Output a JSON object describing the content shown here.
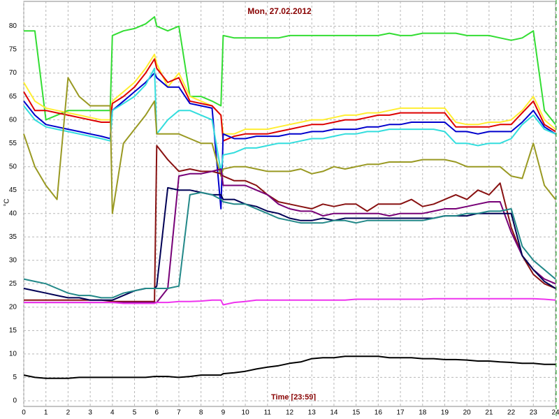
{
  "chart_data": {
    "type": "line",
    "title": "Mon, 27.02.2012",
    "xlabel": "Time [23:59]",
    "ylabel": "°C",
    "xlim": [
      0,
      24
    ],
    "ylim": [
      -1.2,
      85.3
    ],
    "grid": true,
    "xticks": [
      0,
      1,
      2,
      3,
      4,
      5,
      6,
      7,
      8,
      9,
      10,
      11,
      12,
      13,
      14,
      15,
      16,
      17,
      18,
      19,
      20,
      21,
      22,
      23,
      24
    ],
    "yticks": [
      0,
      5,
      10,
      15,
      20,
      25,
      30,
      35,
      40,
      45,
      50,
      55,
      60,
      65,
      70,
      75,
      80
    ],
    "x": [
      0,
      0.5,
      1,
      1.5,
      2,
      2.5,
      3,
      3.5,
      3.9,
      4,
      4.5,
      5,
      5.5,
      5.9,
      6,
      6.5,
      7,
      7.5,
      8,
      8.5,
      8.9,
      9,
      9.5,
      10,
      10.5,
      11,
      11.5,
      12,
      12.5,
      13,
      13.5,
      14,
      14.5,
      15,
      15.5,
      16,
      16.5,
      17,
      17.5,
      18,
      18.5,
      19,
      19.5,
      20,
      20.5,
      21,
      21.5,
      22,
      22.5,
      23,
      23.5,
      24
    ],
    "series": [
      {
        "color": "#33dd33",
        "values": [
          79,
          79,
          60,
          61,
          62,
          62,
          62,
          62,
          62,
          78,
          79,
          79.5,
          80.5,
          82,
          80,
          79,
          80,
          65,
          65,
          64,
          63,
          78,
          77.5,
          77.5,
          77.5,
          77.5,
          77.5,
          78,
          78,
          78,
          78,
          78,
          78,
          78,
          78,
          78,
          78.5,
          78,
          78,
          78.5,
          78.5,
          78.5,
          78.5,
          78,
          78,
          78,
          77.5,
          77,
          77.5,
          79,
          62,
          59
        ]
      },
      {
        "color": "#ffee33",
        "values": [
          68,
          64,
          62.5,
          62,
          61.5,
          61,
          60.5,
          60,
          60,
          64,
          66,
          68,
          71,
          74,
          72,
          67,
          70,
          65,
          64,
          63,
          61,
          57,
          57,
          58,
          58,
          58,
          58.5,
          59,
          59.5,
          60,
          60,
          60.5,
          61,
          61,
          61.5,
          61.5,
          62,
          62.5,
          62.5,
          62.5,
          62.5,
          62.5,
          59.5,
          59,
          59,
          59.5,
          59.5,
          60,
          62,
          65,
          60,
          58
        ]
      },
      {
        "color": "#dd0000",
        "values": [
          66,
          62,
          62,
          61.5,
          61,
          60.5,
          60,
          59.5,
          59.5,
          63.5,
          65,
          67,
          70,
          73,
          71,
          68,
          69,
          64,
          63.5,
          63,
          61,
          55.5,
          56.5,
          57,
          57,
          57,
          57.5,
          58,
          58.5,
          59,
          59,
          59.5,
          60,
          60,
          60.5,
          61,
          61,
          61.5,
          61.5,
          61.5,
          61.5,
          61.5,
          58.5,
          58.5,
          58.5,
          58.5,
          59,
          59,
          61.5,
          64,
          59,
          57.5
        ]
      },
      {
        "color": "#0000cc",
        "values": [
          64,
          61,
          59,
          58.5,
          58,
          57.5,
          57,
          56.5,
          56,
          62,
          64,
          66,
          68,
          70,
          69,
          67,
          67,
          63.5,
          63,
          62.5,
          41,
          57,
          56,
          56,
          56.5,
          56.5,
          56.5,
          57,
          57,
          57.5,
          57.5,
          58,
          58,
          58,
          58.5,
          58.5,
          59,
          59,
          59.5,
          59.5,
          59.5,
          59.5,
          57.5,
          57.5,
          57,
          57.5,
          57.5,
          57.5,
          59.5,
          62,
          58.5,
          57
        ]
      },
      {
        "color": "#33dddd",
        "values": [
          63,
          60,
          58.5,
          58,
          57.5,
          57,
          56.5,
          56,
          55.5,
          62,
          63.5,
          65,
          67.5,
          71,
          57,
          60,
          62,
          62,
          61,
          60,
          49,
          52.5,
          53,
          54,
          54,
          54.5,
          55,
          55,
          55.5,
          56,
          56,
          56.5,
          57,
          57,
          57.5,
          57.5,
          58,
          58,
          58,
          58,
          58,
          57.5,
          55,
          55,
          54.5,
          55,
          55,
          56,
          59,
          61,
          58,
          57
        ]
      },
      {
        "color": "#999922",
        "values": [
          57,
          50,
          46,
          43,
          69,
          65,
          63,
          63,
          63,
          40,
          55,
          58,
          61,
          64,
          57,
          57,
          57,
          56,
          55,
          55,
          48,
          49.5,
          50,
          50,
          49.5,
          49,
          49,
          49,
          49.5,
          48.5,
          49,
          50,
          49.5,
          50,
          50.5,
          50.5,
          51,
          51,
          51,
          51.5,
          51.5,
          51.5,
          51,
          50,
          50,
          50,
          50,
          48,
          47.5,
          55,
          46,
          43
        ]
      },
      {
        "color": "#881111",
        "values": [
          21.5,
          21.5,
          21.5,
          21.5,
          21.5,
          21.5,
          21.5,
          21.5,
          21.3,
          21.2,
          21.2,
          21.2,
          21.2,
          21.2,
          54.5,
          51.5,
          49,
          49.5,
          49,
          49,
          48.5,
          48,
          47,
          47,
          46,
          44,
          42.5,
          42,
          41.5,
          41,
          42,
          41.5,
          42,
          42,
          40.5,
          42,
          42,
          42,
          43,
          41.5,
          42,
          43,
          44,
          43,
          45,
          44,
          46.5,
          37,
          31,
          27,
          25,
          24
        ]
      },
      {
        "color": "#770077",
        "values": [
          21,
          21,
          21,
          21,
          21,
          21,
          21,
          21,
          21,
          21,
          21,
          21,
          21,
          21,
          21,
          24,
          48,
          48.5,
          48.5,
          49,
          49.5,
          46,
          46,
          46,
          45,
          44,
          42,
          41,
          40.5,
          40.5,
          39.5,
          40,
          40,
          40,
          40,
          40,
          39.5,
          40,
          40,
          40,
          40.5,
          41,
          41,
          41.5,
          42,
          42.5,
          42.5,
          36,
          31,
          28,
          26,
          25
        ]
      },
      {
        "color": "#000055",
        "values": [
          24,
          23.5,
          23,
          22.5,
          22,
          22,
          21.5,
          21.5,
          21.5,
          21.5,
          22.5,
          23.5,
          24,
          24,
          24.5,
          45.5,
          45,
          45,
          44.5,
          44,
          44,
          43,
          43,
          42,
          41.5,
          40.5,
          40,
          39,
          38.5,
          38.5,
          39,
          38.5,
          39,
          39,
          39,
          39,
          39,
          39,
          39,
          39,
          39,
          39.5,
          39.5,
          39.5,
          40,
          40,
          40,
          40,
          31,
          28,
          25.5,
          24
        ]
      },
      {
        "color": "#228888",
        "values": [
          26,
          25.5,
          25,
          24,
          23,
          22.5,
          22.5,
          22,
          22,
          22,
          23,
          23.5,
          24,
          24,
          24,
          24,
          24.5,
          44,
          44.5,
          44,
          43,
          42.5,
          42,
          42,
          41,
          40,
          39,
          38.5,
          38,
          38,
          38,
          38.5,
          38.5,
          38,
          38.5,
          38.5,
          38.5,
          38.5,
          38.5,
          38.5,
          39,
          39.5,
          39.5,
          40,
          40,
          40.5,
          40.5,
          41,
          33,
          30,
          28,
          26
        ]
      },
      {
        "color": "#ee33ee",
        "values": [
          21,
          21,
          21,
          21,
          21,
          21,
          21,
          21,
          21,
          21,
          20.8,
          20.8,
          20.8,
          20.8,
          21,
          21,
          21.2,
          21.2,
          21.3,
          21.5,
          21.5,
          20.5,
          21,
          21.2,
          21.5,
          21.5,
          21.5,
          21.5,
          21.5,
          21.5,
          21.5,
          21.5,
          21.5,
          21.7,
          21.7,
          21.7,
          21.7,
          21.7,
          21.7,
          21.7,
          21.8,
          21.8,
          21.8,
          21.8,
          21.8,
          21.8,
          21.8,
          21.8,
          21.8,
          21.8,
          21.7,
          21.5
        ]
      },
      {
        "color": "#000000",
        "values": [
          5.5,
          5,
          4.8,
          4.8,
          4.8,
          5,
          5,
          5,
          5,
          5,
          5,
          5,
          5,
          5.2,
          5.2,
          5.2,
          5,
          5.2,
          5.5,
          5.5,
          5.5,
          5.8,
          6,
          6.3,
          6.8,
          7.2,
          7.5,
          8,
          8.3,
          9,
          9.2,
          9.2,
          9.5,
          9.5,
          9.5,
          9.5,
          9.2,
          9.2,
          9.2,
          9,
          9,
          8.8,
          8.8,
          8.7,
          8.5,
          8.5,
          8.3,
          8.2,
          8,
          8,
          7.8,
          7.8
        ]
      }
    ]
  }
}
